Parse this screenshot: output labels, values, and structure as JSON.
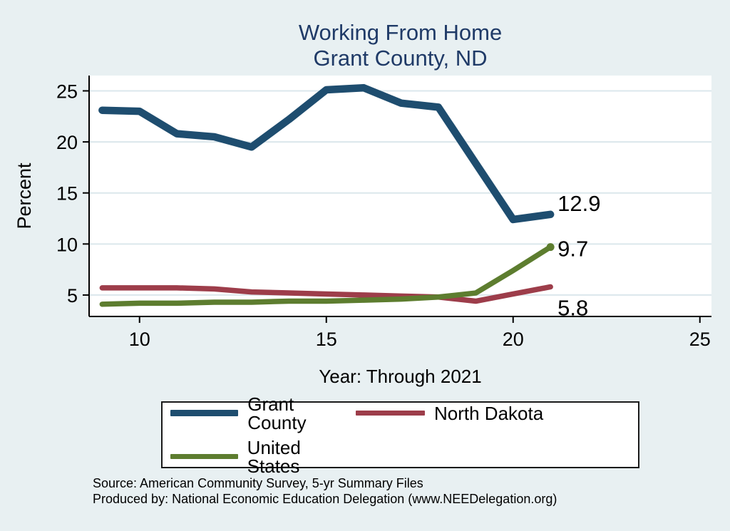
{
  "title": {
    "line1": "Working From Home",
    "line2": "Grant County, ND",
    "color": "#1f3a67"
  },
  "chart_data": {
    "type": "line",
    "title": "Working From Home",
    "subtitle": "Grant County, ND",
    "xlabel": "Year: Through 2021",
    "ylabel": "Percent",
    "x": [
      9,
      10,
      11,
      12,
      13,
      14,
      15,
      16,
      17,
      18,
      19,
      20,
      21
    ],
    "series": [
      {
        "name": "Grant County",
        "color": "#1e4d6f",
        "width": 10.5,
        "values": [
          23.1,
          23.0,
          20.8,
          20.5,
          19.5,
          22.2,
          25.1,
          25.3,
          23.8,
          23.4,
          17.9,
          12.4,
          12.9
        ],
        "end_label": "12.9",
        "end_marker": false,
        "label_dx": 10,
        "label_dy": -5
      },
      {
        "name": "North Dakota",
        "color": "#9d3d4a",
        "width": 7.5,
        "values": [
          5.7,
          5.7,
          5.7,
          5.6,
          5.3,
          5.2,
          5.1,
          5.0,
          4.9,
          4.8,
          4.4,
          5.1,
          5.8
        ],
        "end_label": "5.8",
        "end_marker": false,
        "label_dx": 10,
        "label_dy": 40
      },
      {
        "name": "United States",
        "color": "#5d7d2f",
        "width": 7.5,
        "values": [
          4.1,
          4.2,
          4.2,
          4.3,
          4.3,
          4.4,
          4.4,
          4.5,
          4.6,
          4.8,
          5.2,
          7.4,
          9.7
        ],
        "end_label": "9.7",
        "end_marker": true,
        "label_dx": 10,
        "label_dy": 13
      }
    ],
    "xlim": [
      8.65,
      25.31
    ],
    "ylim": [
      2.9,
      26.5
    ],
    "xticks": [
      "10",
      "15",
      "20",
      "25"
    ],
    "xtick_values": [
      10,
      15,
      20,
      25
    ],
    "yticks": [
      "5",
      "10",
      "15",
      "20",
      "25"
    ],
    "ytick_values": [
      5,
      10,
      15,
      20,
      25
    ],
    "grid": "horizontal",
    "gridline_color": "#dbe7ec",
    "plot_background": "#ffffff",
    "figure_background": "#e8f0f2",
    "axis_color": "#000000",
    "legend_position": "bottom"
  },
  "footer": {
    "source": "Source: American Community Survey, 5-yr Summary Files",
    "produced_by": "Produced by: National Economic Education Delegation (www.NEEDelegation.org)"
  }
}
